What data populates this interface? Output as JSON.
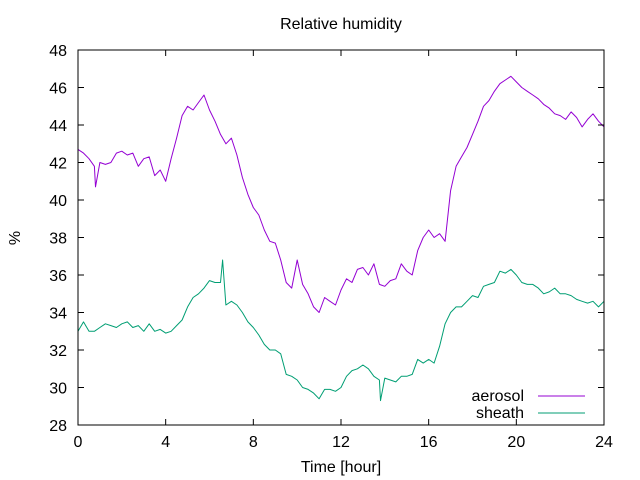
{
  "chart_data": {
    "type": "line",
    "title": "Relative humidity",
    "xlabel": "Time [hour]",
    "ylabel": "%",
    "xlim": [
      0,
      24
    ],
    "ylim": [
      28,
      48
    ],
    "xticks": [
      0,
      4,
      8,
      12,
      16,
      20,
      24
    ],
    "yticks": [
      28,
      30,
      32,
      34,
      36,
      38,
      40,
      42,
      44,
      46,
      48
    ],
    "grid": false,
    "legend_position": "bottom-right",
    "series": [
      {
        "name": "aerosol",
        "color": "#9400d3",
        "x": [
          0,
          0.25,
          0.5,
          0.75,
          0.8,
          1.0,
          1.25,
          1.5,
          1.75,
          2.0,
          2.25,
          2.5,
          2.75,
          3.0,
          3.25,
          3.5,
          3.75,
          4.0,
          4.25,
          4.5,
          4.75,
          5.0,
          5.25,
          5.5,
          5.75,
          6.0,
          6.25,
          6.5,
          6.75,
          7.0,
          7.25,
          7.5,
          7.75,
          8.0,
          8.25,
          8.5,
          8.75,
          9.0,
          9.25,
          9.5,
          9.75,
          10.0,
          10.25,
          10.5,
          10.75,
          11.0,
          11.25,
          11.5,
          11.75,
          12.0,
          12.25,
          12.5,
          12.75,
          13.0,
          13.25,
          13.5,
          13.75,
          14.0,
          14.25,
          14.5,
          14.75,
          15.0,
          15.25,
          15.5,
          15.75,
          16.0,
          16.25,
          16.5,
          16.75,
          17.0,
          17.25,
          17.5,
          17.75,
          18.0,
          18.25,
          18.5,
          18.75,
          19.0,
          19.25,
          19.5,
          19.75,
          20.0,
          20.25,
          20.5,
          20.75,
          21.0,
          21.25,
          21.5,
          21.75,
          22.0,
          22.25,
          22.5,
          22.75,
          23.0,
          23.25,
          23.5,
          23.75,
          24.0
        ],
        "y": [
          42.7,
          42.5,
          42.2,
          41.8,
          40.7,
          42.0,
          41.9,
          42.0,
          42.5,
          42.6,
          42.4,
          42.5,
          41.8,
          42.2,
          42.3,
          41.3,
          41.6,
          41.0,
          42.2,
          43.3,
          44.5,
          45.0,
          44.8,
          45.2,
          45.6,
          44.8,
          44.2,
          43.5,
          43.0,
          43.3,
          42.4,
          41.2,
          40.3,
          39.6,
          39.2,
          38.4,
          37.8,
          37.7,
          36.8,
          35.6,
          35.3,
          36.8,
          35.5,
          35.0,
          34.3,
          34.0,
          34.8,
          34.6,
          34.4,
          35.2,
          35.8,
          35.6,
          36.3,
          36.4,
          36.0,
          36.6,
          35.5,
          35.4,
          35.7,
          35.8,
          36.6,
          36.2,
          36.0,
          37.3,
          38.0,
          38.4,
          38.0,
          38.2,
          37.8,
          40.5,
          41.8,
          42.3,
          42.8,
          43.5,
          44.2,
          45.0,
          45.3,
          45.8,
          46.2,
          46.4,
          46.6,
          46.3,
          46.0,
          45.8,
          45.6,
          45.4,
          45.1,
          44.9,
          44.6,
          44.5,
          44.3,
          44.7,
          44.4,
          43.9,
          44.3,
          44.6,
          44.2,
          43.9
        ]
      },
      {
        "name": "sheath",
        "color": "#009e73",
        "x": [
          0,
          0.25,
          0.5,
          0.75,
          1.0,
          1.25,
          1.5,
          1.75,
          2.0,
          2.25,
          2.5,
          2.75,
          3.0,
          3.25,
          3.5,
          3.75,
          4.0,
          4.25,
          4.5,
          4.75,
          5.0,
          5.25,
          5.5,
          5.75,
          6.0,
          6.25,
          6.5,
          6.6,
          6.75,
          7.0,
          7.25,
          7.5,
          7.75,
          8.0,
          8.25,
          8.5,
          8.75,
          9.0,
          9.25,
          9.5,
          9.75,
          10.0,
          10.25,
          10.5,
          10.75,
          11.0,
          11.25,
          11.5,
          11.75,
          12.0,
          12.25,
          12.5,
          12.75,
          13.0,
          13.25,
          13.5,
          13.75,
          13.8,
          14.0,
          14.25,
          14.5,
          14.75,
          15.0,
          15.25,
          15.5,
          15.75,
          16.0,
          16.25,
          16.5,
          16.75,
          17.0,
          17.25,
          17.5,
          17.75,
          18.0,
          18.25,
          18.5,
          18.75,
          19.0,
          19.25,
          19.5,
          19.75,
          20.0,
          20.25,
          20.5,
          20.75,
          21.0,
          21.25,
          21.5,
          21.75,
          22.0,
          22.25,
          22.5,
          22.75,
          23.0,
          23.25,
          23.5,
          23.75,
          24.0
        ],
        "y": [
          33.0,
          33.5,
          33.0,
          33.0,
          33.2,
          33.4,
          33.3,
          33.2,
          33.4,
          33.5,
          33.2,
          33.3,
          33.0,
          33.4,
          33.0,
          33.1,
          32.9,
          33.0,
          33.3,
          33.6,
          34.3,
          34.8,
          35.0,
          35.3,
          35.7,
          35.6,
          35.6,
          36.8,
          34.4,
          34.6,
          34.4,
          34.0,
          33.5,
          33.2,
          32.8,
          32.3,
          32.0,
          32.0,
          31.8,
          30.7,
          30.6,
          30.4,
          30.0,
          29.9,
          29.7,
          29.4,
          29.9,
          29.9,
          29.8,
          30.0,
          30.6,
          30.9,
          31.0,
          31.2,
          31.0,
          30.6,
          30.4,
          29.3,
          30.5,
          30.4,
          30.3,
          30.6,
          30.6,
          30.7,
          31.5,
          31.3,
          31.5,
          31.3,
          32.2,
          33.4,
          34.0,
          34.3,
          34.3,
          34.6,
          34.9,
          34.8,
          35.4,
          35.5,
          35.6,
          36.2,
          36.1,
          36.3,
          36.0,
          35.6,
          35.5,
          35.5,
          35.3,
          35.0,
          35.1,
          35.3,
          35.0,
          35.0,
          34.9,
          34.7,
          34.6,
          34.5,
          34.6,
          34.3,
          34.6
        ]
      }
    ]
  }
}
